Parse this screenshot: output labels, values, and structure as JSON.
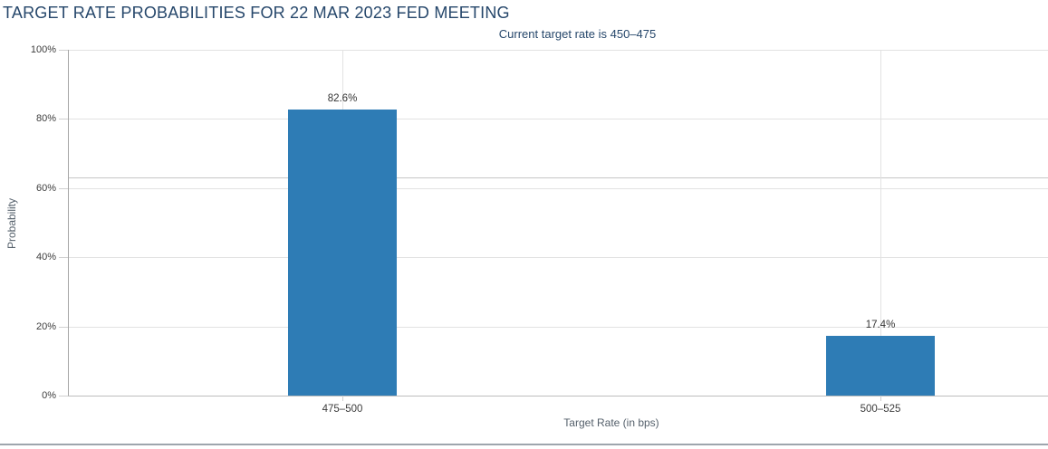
{
  "header": {
    "title": "TARGET RATE PROBABILITIES FOR 22 MAR 2023 FED MEETING"
  },
  "chart_data": {
    "type": "bar",
    "title": "TARGET RATE PROBABILITIES FOR 22 MAR 2023 FED MEETING",
    "subtitle": "Current target rate is 450–475",
    "categories": [
      "475–500",
      "500–525"
    ],
    "values": [
      82.6,
      17.4
    ],
    "data_labels": [
      "82.6%",
      "17.4%"
    ],
    "xlabel": "Target Rate (in bps)",
    "ylabel": "Probability",
    "ylim": [
      0,
      100
    ],
    "yticks_pct": [
      0,
      20,
      40,
      60,
      80,
      100
    ],
    "ytick_labels": [
      "0%",
      "20%",
      "40%",
      "60%",
      "80%",
      "100%"
    ],
    "grid": true,
    "legend_position": "none",
    "reference_line_pct": 63,
    "colors": {
      "bar": "#2e7cb5",
      "title": "#26476b",
      "subtitle": "#26476b",
      "gridline": "#e2e2e2",
      "vertical_gridline": "#e2e2e2",
      "axis_line": "#a6a6a6",
      "tick": "#cfcfcf",
      "tick_label": "#3c3c3c",
      "data_label": "#333333",
      "axis_title": "#55606b",
      "reference_line": "#c6c6c6",
      "bottom_divider": "#9ea5ad"
    }
  }
}
